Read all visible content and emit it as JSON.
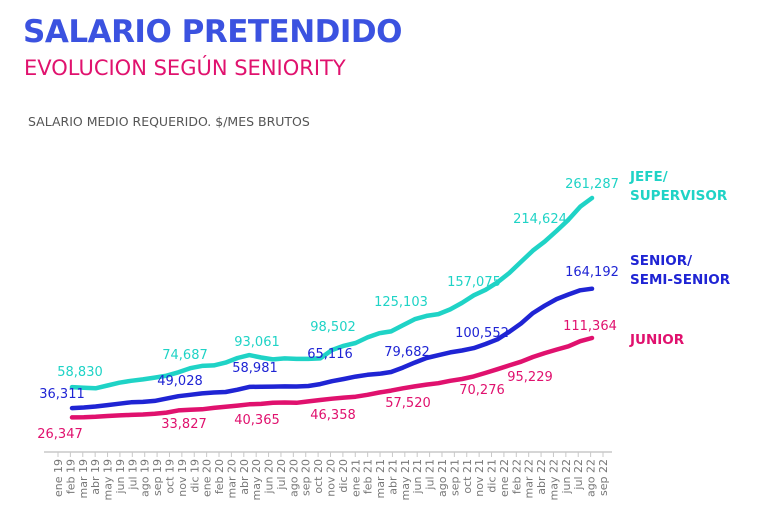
{
  "title": "SALARIO PRETENDIDO",
  "subtitle": "EVOLUCION SEGÚN SENIORITY",
  "chart_data": {
    "type": "line",
    "title": "SALARIO PRETENDIDO",
    "subtitle": "EVOLUCION SEGÚN SENIORITY",
    "ylabel": "SALARIO MEDIO REQUERIDO. $/MES BRUTOS",
    "xlabel": "",
    "grid": false,
    "legend": "right",
    "categories": [
      "ene 19",
      "feb 19",
      "mar 19",
      "abr 19",
      "may 19",
      "jun 19",
      "jul 19",
      "ago 19",
      "sep 19",
      "oct 19",
      "nov 19",
      "dic 19",
      "ene 20",
      "feb 20",
      "mar 20",
      "abr 20",
      "may 20",
      "jun 20",
      "jul 20",
      "ago 20",
      "sep 20",
      "oct 20",
      "nov 20",
      "dic 20",
      "ene 21",
      "feb 21",
      "mar 21",
      "abr 21",
      "may 21",
      "jun 21",
      "jul 21",
      "ago 21",
      "sep 21",
      "oct 21",
      "nov 21",
      "dic 21",
      "ene 22",
      "feb 22",
      "mar 22",
      "abr 22",
      "may 22",
      "jun 22",
      "jul 22",
      "ago 22",
      "sep 22"
    ],
    "ylim": [
      0,
      270000
    ],
    "series": [
      {
        "name": "JEFE/ SUPERVISOR",
        "legend_lines": [
          "JEFE/",
          "SUPERVISOR"
        ],
        "color": "#1fd3c6",
        "values": [
          58830,
          58000,
          57500,
          60500,
          63500,
          65500,
          67000,
          69000,
          71000,
          74687,
          79000,
          81500,
          82000,
          85000,
          90000,
          93061,
          90500,
          88500,
          89500,
          89000,
          89000,
          89500,
          98502,
          103000,
          106000,
          112000,
          116500,
          118500,
          125103,
          131500,
          135000,
          137000,
          142000,
          149000,
          157075,
          163000,
          171000,
          181000,
          193000,
          205000,
          214624,
          226000,
          238000,
          252000,
          261287
        ],
        "labels": [
          {
            "index": 0,
            "text": "58,830"
          },
          {
            "index": 9,
            "text": "74,687"
          },
          {
            "index": 15,
            "text": "93,061"
          },
          {
            "index": 22,
            "text": "98,502"
          },
          {
            "index": 28,
            "text": "125,103"
          },
          {
            "index": 34,
            "text": "157,075"
          },
          {
            "index": 40,
            "text": "214,624"
          },
          {
            "index": 44,
            "text": "261,287"
          }
        ]
      },
      {
        "name": "SENIOR/ SEMI-SENIOR",
        "legend_lines": [
          "SENIOR/",
          "SEMI-SENIOR"
        ],
        "color": "#1f24d4",
        "values": [
          36311,
          37000,
          38000,
          39500,
          41000,
          42500,
          43000,
          44000,
          46500,
          49028,
          50500,
          52000,
          53000,
          53500,
          56000,
          58981,
          59200,
          59300,
          59500,
          59400,
          60000,
          62000,
          65116,
          67500,
          70000,
          72000,
          73000,
          75000,
          79682,
          85000,
          90000,
          93000,
          96000,
          98000,
          100552,
          105000,
          110000,
          118000,
          127000,
          138000,
          146000,
          153000,
          158000,
          162500,
          164192
        ],
        "labels": [
          {
            "index": 0,
            "text": "36,311"
          },
          {
            "index": 9,
            "text": "49,028"
          },
          {
            "index": 15,
            "text": "58,981"
          },
          {
            "index": 22,
            "text": "65,116"
          },
          {
            "index": 28,
            "text": "79,682"
          },
          {
            "index": 34,
            "text": "100,552"
          },
          {
            "index": 44,
            "text": "164,192"
          }
        ]
      },
      {
        "name": "JUNIOR",
        "legend_lines": [
          "JUNIOR"
        ],
        "color": "#e0116e",
        "values": [
          26347,
          26500,
          27000,
          27800,
          28500,
          29000,
          29500,
          30200,
          31500,
          33827,
          34500,
          35000,
          36500,
          37800,
          39000,
          40365,
          40800,
          42000,
          42300,
          42000,
          43500,
          45000,
          46358,
          47500,
          48500,
          50500,
          53000,
          55000,
          57520,
          59500,
          61500,
          63000,
          65500,
          67500,
          70276,
          74000,
          78000,
          82000,
          86000,
          91000,
          95229,
          99000,
          102500,
          108000,
          111364
        ],
        "labels": [
          {
            "index": 0,
            "text": "26,347"
          },
          {
            "index": 9,
            "text": "33,827"
          },
          {
            "index": 15,
            "text": "40,365"
          },
          {
            "index": 22,
            "text": "46,358"
          },
          {
            "index": 28,
            "text": "57,520"
          },
          {
            "index": 34,
            "text": "70,276"
          },
          {
            "index": 40,
            "text": "95,229"
          },
          {
            "index": 44,
            "text": "111,364"
          }
        ]
      }
    ]
  }
}
